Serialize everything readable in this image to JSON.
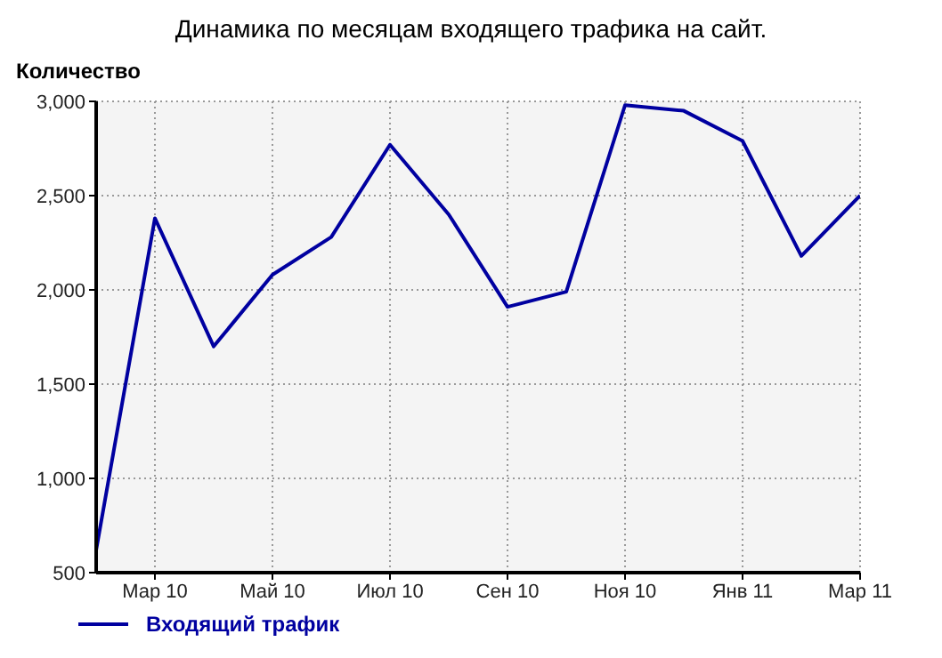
{
  "chart_data": {
    "type": "line",
    "title": "Динамика по месяцам входящего трафика на сайт.",
    "ylabel": "Количество",
    "categories": [
      null,
      "Мар 10",
      null,
      "Май 10",
      null,
      "Июл 10",
      null,
      "Сен 10",
      null,
      "Ноя 10",
      null,
      "Янв 11",
      null,
      "Мар 11"
    ],
    "series": [
      {
        "name": "Входящий трафик",
        "color": "#0000a0",
        "values": [
          620,
          2380,
          1700,
          2080,
          2280,
          2770,
          2400,
          1910,
          1990,
          2980,
          2950,
          2790,
          2180,
          2500
        ]
      }
    ],
    "ylim": [
      500,
      3000
    ],
    "yticks": [
      500,
      {
        "value": 1000,
        "label": "1,000"
      },
      {
        "value": 1500,
        "label": "1,500"
      },
      {
        "value": 2000,
        "label": "2,000"
      },
      {
        "value": 2500,
        "label": "2,500"
      },
      {
        "value": 3000,
        "label": "3,000"
      }
    ],
    "grid": true,
    "legend": "bottom left",
    "marker": "none",
    "line_style": "solid"
  }
}
